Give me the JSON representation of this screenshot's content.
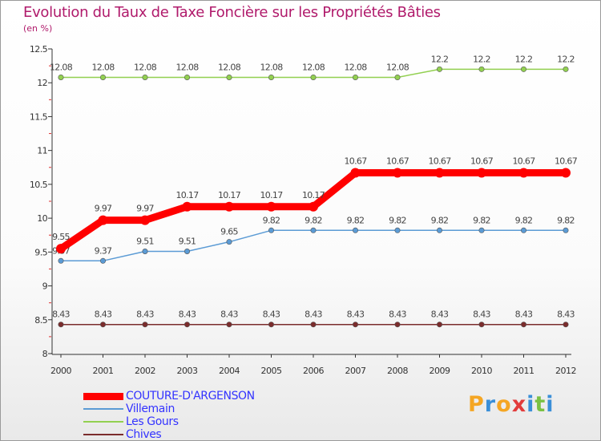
{
  "chart_data": {
    "type": "line",
    "title": "Evolution du Taux de Taxe Foncière sur les Propriétés Bâties",
    "subtitle": "(en %)",
    "x": [
      "2000",
      "2001",
      "2002",
      "2003",
      "2004",
      "2005",
      "2006",
      "2007",
      "2008",
      "2009",
      "2010",
      "2011",
      "2012"
    ],
    "ylim": [
      8,
      12.5
    ],
    "yticks": [
      "8",
      "8.5",
      "9",
      "9.5",
      "10",
      "10.5",
      "11",
      "11.5",
      "12",
      "12.5"
    ],
    "series": [
      {
        "name": "COUTURE-D'ARGENSON",
        "color": "#ff0000",
        "values": [
          9.55,
          9.97,
          9.97,
          10.17,
          10.17,
          10.17,
          10.17,
          10.67,
          10.67,
          10.67,
          10.67,
          10.67,
          10.67
        ],
        "labels": [
          "9.55",
          "9.97",
          "9.97",
          "10.17",
          "10.17",
          "10.17",
          "10.17",
          "10.67",
          "10.67",
          "10.67",
          "10.67",
          "10.67",
          "10.67"
        ]
      },
      {
        "name": "Villemain",
        "color": "#5b9bd5",
        "values": [
          9.37,
          9.37,
          9.51,
          9.51,
          9.65,
          9.82,
          9.82,
          9.82,
          9.82,
          9.82,
          9.82,
          9.82,
          9.82
        ],
        "labels": [
          "9.37",
          "9.37",
          "9.51",
          "9.51",
          "9.65",
          "9.82",
          "9.82",
          "9.82",
          "9.82",
          "9.82",
          "9.82",
          "9.82",
          "9.82"
        ]
      },
      {
        "name": "Les Gours",
        "color": "#92d050",
        "values": [
          12.08,
          12.08,
          12.08,
          12.08,
          12.08,
          12.08,
          12.08,
          12.08,
          12.08,
          12.2,
          12.2,
          12.2,
          12.2
        ],
        "labels": [
          "12.08",
          "12.08",
          "12.08",
          "12.08",
          "12.08",
          "12.08",
          "12.08",
          "12.08",
          "12.08",
          "12.2",
          "12.2",
          "12.2",
          "12.2"
        ]
      },
      {
        "name": "Chives",
        "color": "#7b2c2c",
        "values": [
          8.43,
          8.43,
          8.43,
          8.43,
          8.43,
          8.43,
          8.43,
          8.43,
          8.43,
          8.43,
          8.43,
          8.43,
          8.43
        ],
        "labels": [
          "8.43",
          "8.43",
          "8.43",
          "8.43",
          "8.43",
          "8.43",
          "8.43",
          "8.43",
          "8.43",
          "8.43",
          "8.43",
          "8.43",
          "8.43"
        ]
      }
    ],
    "legend_position": "bottom-left",
    "grid": false
  },
  "logo": {
    "text": "Proxiti",
    "letter_colors": [
      "#f5a623",
      "#3a8fd8",
      "#f5a623",
      "#e23b3b",
      "#3a8fd8",
      "#7ac143",
      "#3a8fd8"
    ]
  }
}
